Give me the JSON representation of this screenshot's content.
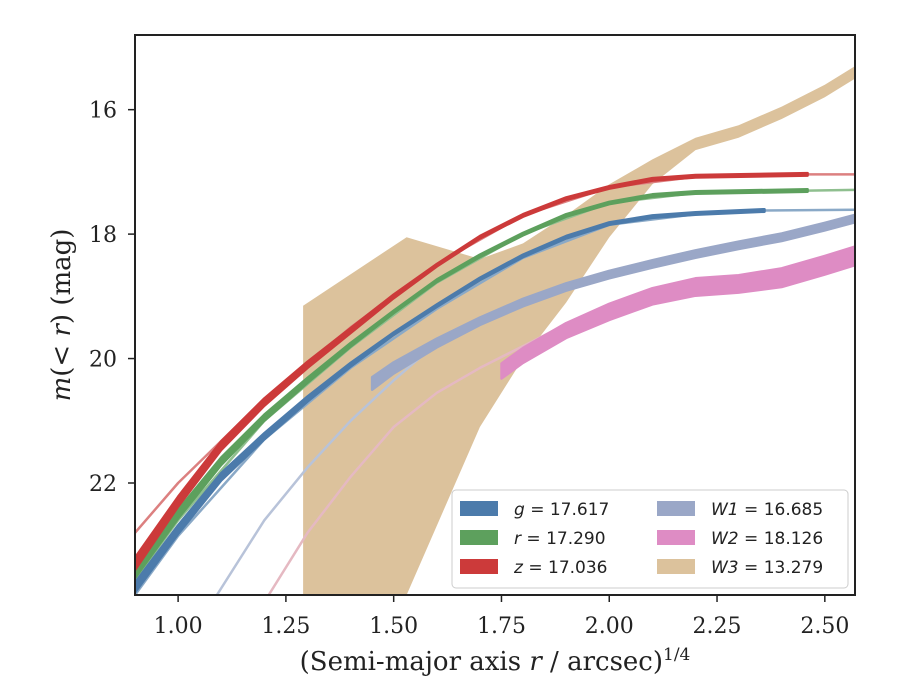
{
  "chart_data": {
    "type": "line",
    "xlabel": "(Semi-major axis r / arcsec)^{1/4}",
    "xlabel_parts": {
      "main": "(Semi-major axis ",
      "var": "r",
      "rest": " / arcsec)",
      "sup": "1/4"
    },
    "ylabel": "m(< r) (mag)",
    "ylabel_parts": {
      "m": "m",
      "open": "(< ",
      "r": "r",
      "close": ") (mag)"
    },
    "xlim": [
      0.9,
      2.57
    ],
    "ylim": [
      23.8,
      14.8
    ],
    "y_inverted": true,
    "grid": false,
    "legend_position": "lower-right",
    "xticks": [
      1.0,
      1.25,
      1.5,
      1.75,
      2.0,
      2.25,
      2.5
    ],
    "xtick_labels": [
      "1.00",
      "1.25",
      "1.50",
      "1.75",
      "2.00",
      "2.25",
      "2.50"
    ],
    "yticks": [
      16,
      18,
      20,
      22
    ],
    "ytick_labels": [
      "16",
      "18",
      "20",
      "22"
    ],
    "series": [
      {
        "name": "g = 17.617",
        "legend_var": "g",
        "legend_val": "17.617",
        "color": "#4c7bab",
        "model_color": "#8aa9c7",
        "x": [
          0.9,
          1.0,
          1.1,
          1.2,
          1.3,
          1.4,
          1.5,
          1.6,
          1.7,
          1.8,
          1.9,
          2.0,
          2.1,
          2.2,
          2.36
        ],
        "y": [
          23.68,
          22.75,
          21.9,
          21.25,
          20.65,
          20.1,
          19.6,
          19.15,
          18.72,
          18.35,
          18.05,
          17.83,
          17.72,
          17.67,
          17.62
        ],
        "err": [
          0.08,
          0.07,
          0.06,
          0.05,
          0.04,
          0.03,
          0.02,
          0.02,
          0.02,
          0.02,
          0.02,
          0.02,
          0.02,
          0.02,
          0.02
        ],
        "model_x": [
          0.9,
          1.0,
          1.2,
          1.4,
          1.6,
          1.8,
          2.0,
          2.2,
          2.36,
          2.57
        ],
        "model_y": [
          23.8,
          22.85,
          21.3,
          20.15,
          19.2,
          18.38,
          17.85,
          17.68,
          17.62,
          17.61
        ]
      },
      {
        "name": "r = 17.290",
        "legend_var": "r",
        "legend_val": "17.290",
        "color": "#5da05d",
        "model_color": "#8fbf8f",
        "x": [
          0.9,
          1.0,
          1.1,
          1.2,
          1.3,
          1.4,
          1.5,
          1.6,
          1.7,
          1.8,
          1.9,
          2.0,
          2.1,
          2.2,
          2.46
        ],
        "y": [
          23.45,
          22.5,
          21.65,
          20.95,
          20.35,
          19.78,
          19.25,
          18.75,
          18.35,
          18.0,
          17.7,
          17.5,
          17.38,
          17.33,
          17.3
        ],
        "err": [
          0.08,
          0.07,
          0.06,
          0.05,
          0.04,
          0.03,
          0.02,
          0.02,
          0.02,
          0.02,
          0.02,
          0.02,
          0.02,
          0.02,
          0.02
        ],
        "model_x": [
          0.9,
          1.0,
          1.2,
          1.4,
          1.6,
          1.8,
          2.0,
          2.2,
          2.46,
          2.57
        ],
        "model_y": [
          23.55,
          22.6,
          21.0,
          19.82,
          18.78,
          18.0,
          17.5,
          17.34,
          17.3,
          17.29
        ]
      },
      {
        "name": "z = 17.036",
        "legend_var": "z",
        "legend_val": "17.036",
        "color": "#cc3a3a",
        "model_color": "#dc8080",
        "x": [
          0.9,
          1.0,
          1.1,
          1.2,
          1.3,
          1.4,
          1.5,
          1.6,
          1.7,
          1.8,
          1.9,
          2.0,
          2.1,
          2.2,
          2.46
        ],
        "y": [
          23.3,
          22.3,
          21.4,
          20.7,
          20.1,
          19.55,
          19.0,
          18.5,
          18.05,
          17.7,
          17.43,
          17.25,
          17.12,
          17.07,
          17.04
        ],
        "err": [
          0.1,
          0.08,
          0.07,
          0.06,
          0.05,
          0.04,
          0.03,
          0.02,
          0.02,
          0.02,
          0.02,
          0.02,
          0.02,
          0.02,
          0.02
        ],
        "model_x": [
          0.9,
          1.0,
          1.2,
          1.4,
          1.6,
          1.8,
          2.0,
          2.2,
          2.46,
          2.57
        ],
        "model_y": [
          22.8,
          22.0,
          20.65,
          19.5,
          18.48,
          17.7,
          17.25,
          17.08,
          17.04,
          17.04
        ]
      },
      {
        "name": "W1 = 16.685",
        "legend_var": "W1",
        "legend_val": "16.685",
        "color": "#9aa7c7",
        "model_color": "#b8c3d9",
        "x": [
          1.45,
          1.5,
          1.6,
          1.7,
          1.8,
          1.9,
          2.0,
          2.1,
          2.2,
          2.3,
          2.4,
          2.5,
          2.57
        ],
        "y": [
          20.4,
          20.15,
          19.75,
          19.4,
          19.1,
          18.85,
          18.65,
          18.48,
          18.32,
          18.18,
          18.05,
          17.88,
          17.75
        ],
        "err": [
          0.1,
          0.09,
          0.07,
          0.06,
          0.06,
          0.06,
          0.06,
          0.06,
          0.06,
          0.06,
          0.06,
          0.06,
          0.06
        ],
        "model_x": [
          1.09,
          1.2,
          1.3,
          1.4,
          1.5,
          1.6,
          1.7,
          1.8,
          1.9,
          2.0,
          2.1,
          2.2,
          2.4,
          2.57
        ],
        "model_y": [
          23.8,
          22.6,
          21.75,
          21.0,
          20.35,
          19.75,
          19.4,
          19.1,
          18.85,
          18.65,
          18.48,
          18.32,
          18.05,
          17.75
        ]
      },
      {
        "name": "W2 = 18.126",
        "legend_var": "W2",
        "legend_val": "18.126",
        "color": "#de8cc4",
        "model_color": "#e5b9c2",
        "x": [
          1.75,
          1.8,
          1.9,
          2.0,
          2.1,
          2.2,
          2.3,
          2.4,
          2.5,
          2.57
        ],
        "y": [
          20.2,
          19.95,
          19.55,
          19.25,
          19.0,
          18.85,
          18.8,
          18.7,
          18.5,
          18.35
        ],
        "err": [
          0.12,
          0.12,
          0.12,
          0.13,
          0.13,
          0.14,
          0.14,
          0.15,
          0.15,
          0.15
        ],
        "model_x": [
          1.21,
          1.3,
          1.4,
          1.5,
          1.6,
          1.7,
          1.8,
          1.9,
          2.0,
          2.1,
          2.2,
          2.3,
          2.4,
          2.57
        ],
        "model_y": [
          23.8,
          22.8,
          21.9,
          21.1,
          20.55,
          20.15,
          19.8,
          19.45,
          19.2,
          19.0,
          18.85,
          18.8,
          18.7,
          18.35
        ]
      },
      {
        "name": "W3 = 13.279",
        "legend_var": "W3",
        "legend_val": "13.279",
        "color": "#dcc29c",
        "band_x": [
          1.29,
          1.53,
          1.7,
          1.8,
          1.9,
          2.0,
          2.1,
          2.2,
          2.3,
          2.4,
          2.5,
          2.57
        ],
        "band_upper": [
          19.15,
          18.05,
          18.4,
          18.15,
          17.7,
          17.2,
          16.8,
          16.45,
          16.25,
          15.95,
          15.6,
          15.3
        ],
        "band_lower": [
          23.8,
          23.8,
          21.1,
          20.0,
          19.1,
          18.05,
          17.2,
          16.65,
          16.45,
          16.15,
          15.8,
          15.5
        ]
      }
    ]
  }
}
